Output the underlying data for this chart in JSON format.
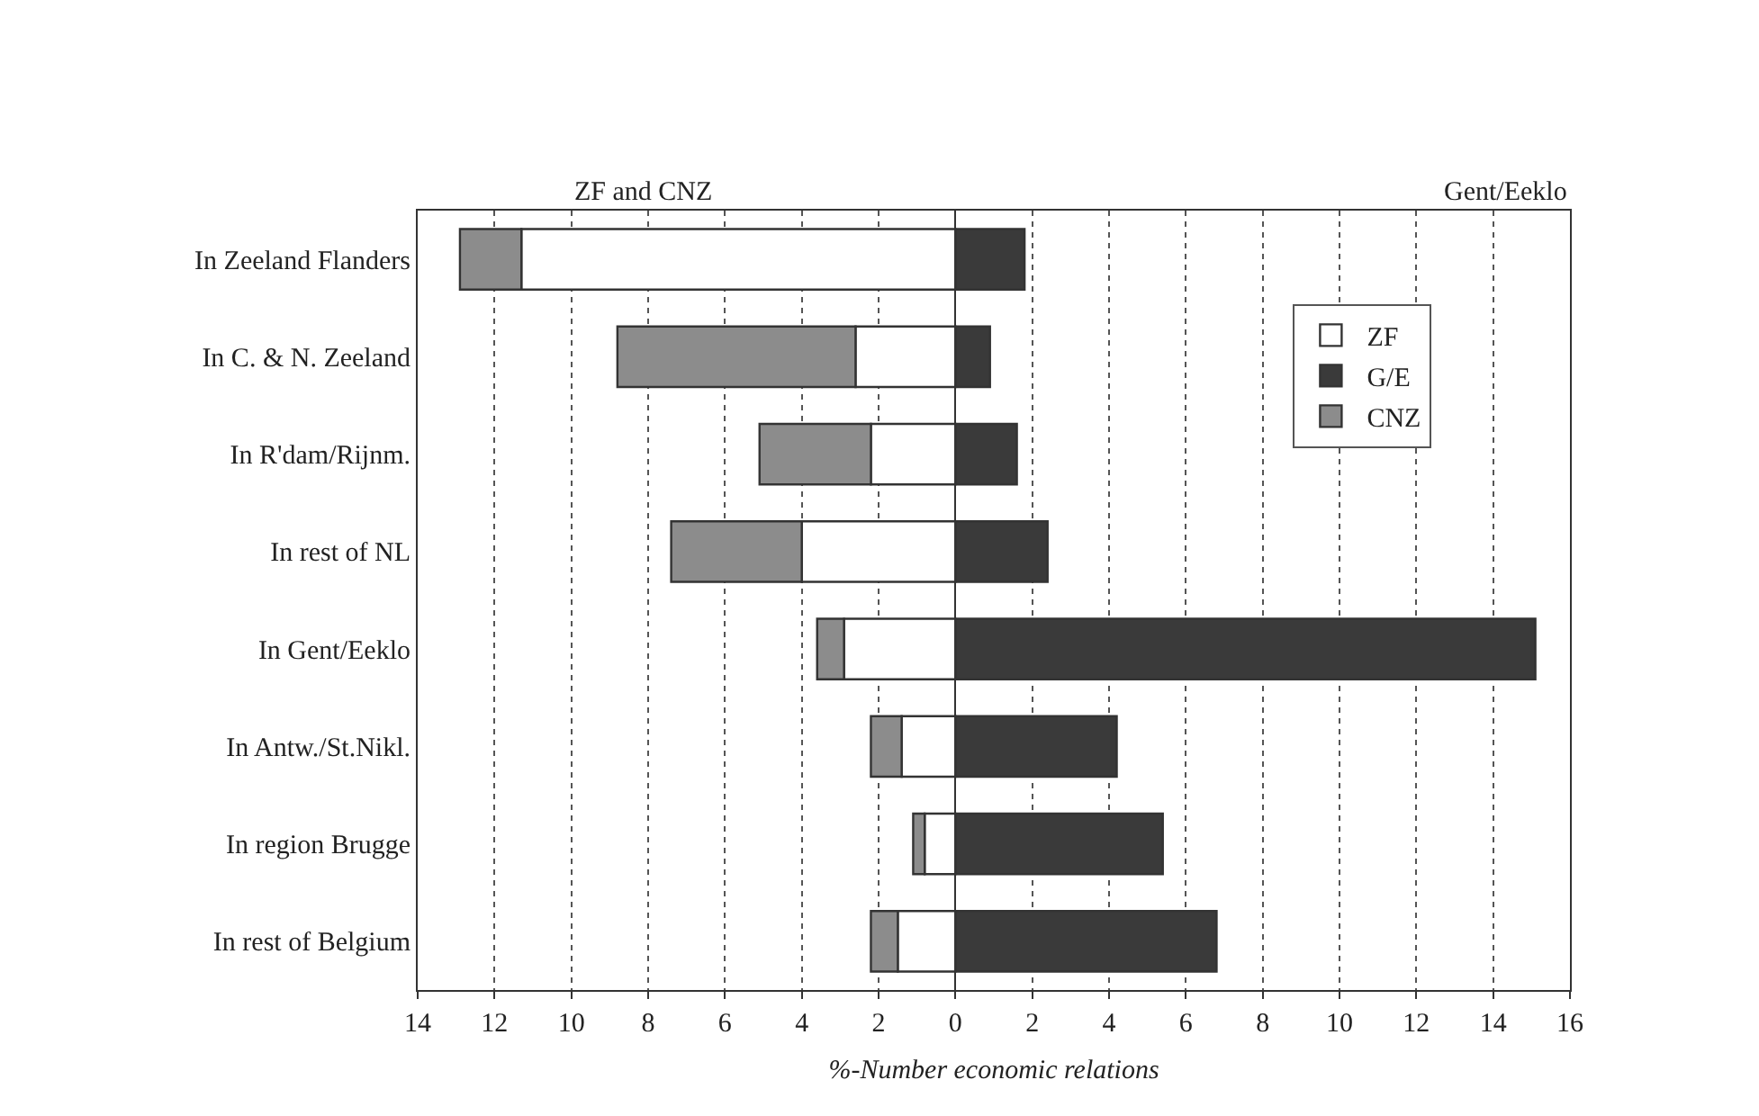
{
  "chart_data": {
    "type": "bar",
    "orientation": "horizontal",
    "stacked": true,
    "categories": [
      "In Zeeland Flanders",
      "In C. & N. Zeeland",
      "In R'dam/Rijnm.",
      "In rest of NL",
      "In Gent/Eeklo",
      "In Antw./St.Nikl.",
      "In region Brugge",
      "In rest of Belgium"
    ],
    "series": [
      {
        "name": "ZF",
        "color": "#ffffff",
        "values": [
          -11.3,
          -2.6,
          -2.2,
          -4.0,
          -2.9,
          -1.4,
          -0.8,
          -1.5
        ]
      },
      {
        "name": "G/E",
        "color": "#3a3a3a",
        "values": [
          1.8,
          0.9,
          1.6,
          2.4,
          15.1,
          4.2,
          5.4,
          6.8
        ]
      },
      {
        "name": "CNZ",
        "color": "#8c8c8c",
        "values": [
          -1.6,
          -6.2,
          -2.9,
          -3.4,
          -0.7,
          -0.8,
          -0.3,
          -0.7
        ]
      }
    ],
    "xlabel": "%-Number economic relations",
    "xlim": [
      -14,
      16
    ],
    "xticks": [
      {
        "value": -14,
        "label": "14"
      },
      {
        "value": -12,
        "label": "12"
      },
      {
        "value": -10,
        "label": "10"
      },
      {
        "value": -8,
        "label": "8"
      },
      {
        "value": -6,
        "label": "6"
      },
      {
        "value": -4,
        "label": "4"
      },
      {
        "value": -2,
        "label": "2"
      },
      0,
      2,
      4,
      6,
      8,
      10,
      12,
      14,
      16
    ],
    "grid": "x",
    "legend": "top right",
    "annotations": [
      "ZF and CNZ",
      "Gent/Eeklo"
    ]
  }
}
